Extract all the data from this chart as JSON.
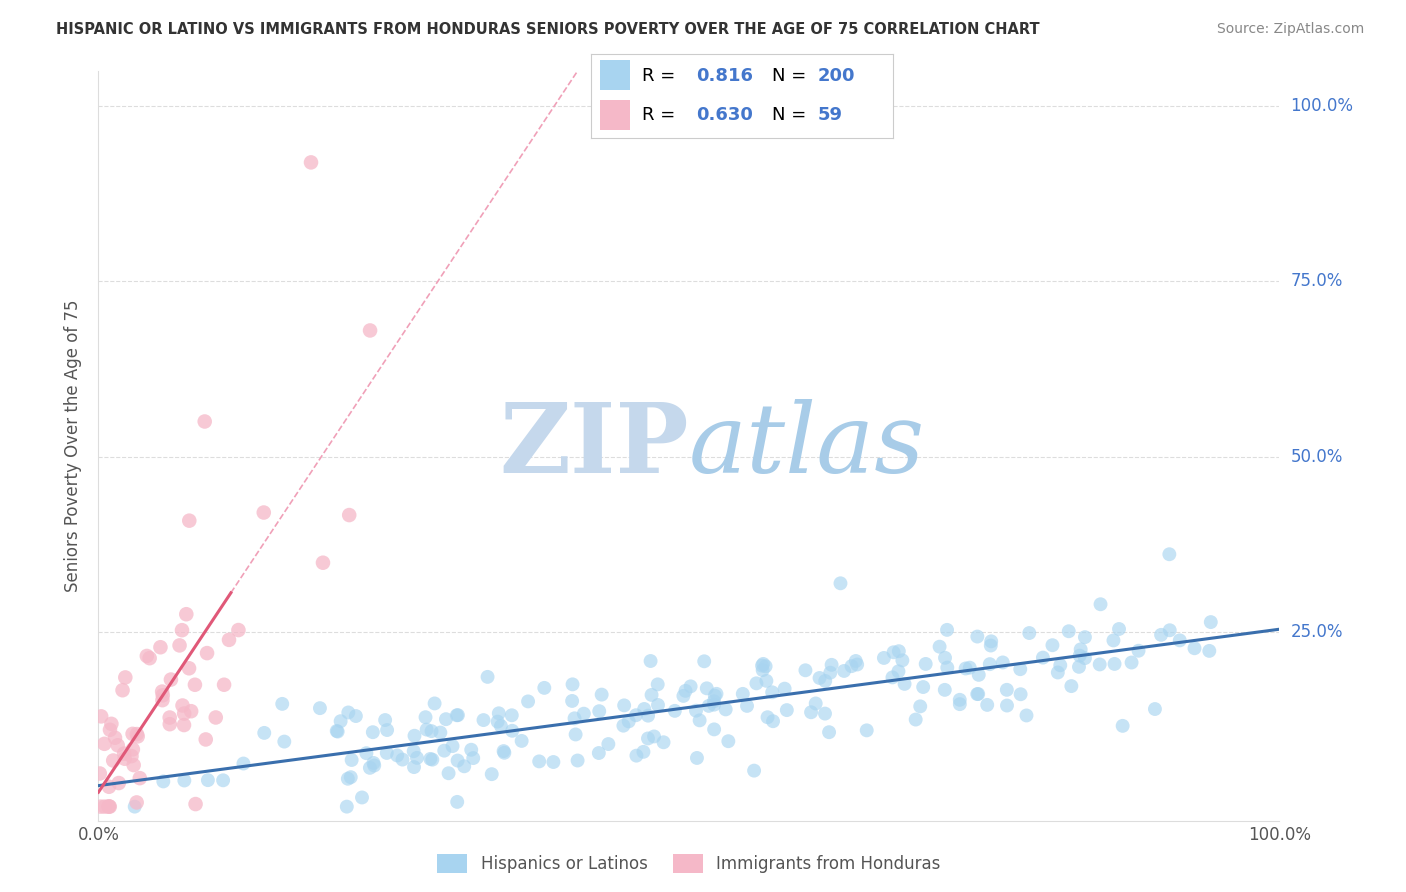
{
  "title": "HISPANIC OR LATINO VS IMMIGRANTS FROM HONDURAS SENIORS POVERTY OVER THE AGE OF 75 CORRELATION CHART",
  "source": "Source: ZipAtlas.com",
  "ylabel": "Seniors Poverty Over the Age of 75",
  "blue_color": "#A8D4F0",
  "pink_color": "#F5B8C8",
  "blue_line_color": "#3A6FAD",
  "pink_line_color": "#E05878",
  "pink_dash_color": "#F0A0B8",
  "watermark_zip": "ZIP",
  "watermark_atlas": "atlas",
  "watermark_zip_color": "#C8DCF0",
  "watermark_atlas_color": "#A0C8E8",
  "background_color": "#FFFFFF",
  "grid_color": "#DDDDDD",
  "R_blue": 0.816,
  "N_blue": 200,
  "R_pink": 0.63,
  "N_pink": 59,
  "legend_R_color": "#4477CC",
  "legend_N_color": "#4477CC",
  "ytick_color": "#4477CC",
  "xtick_color": "#555555",
  "title_color": "#333333",
  "source_color": "#888888",
  "ylabel_color": "#555555"
}
